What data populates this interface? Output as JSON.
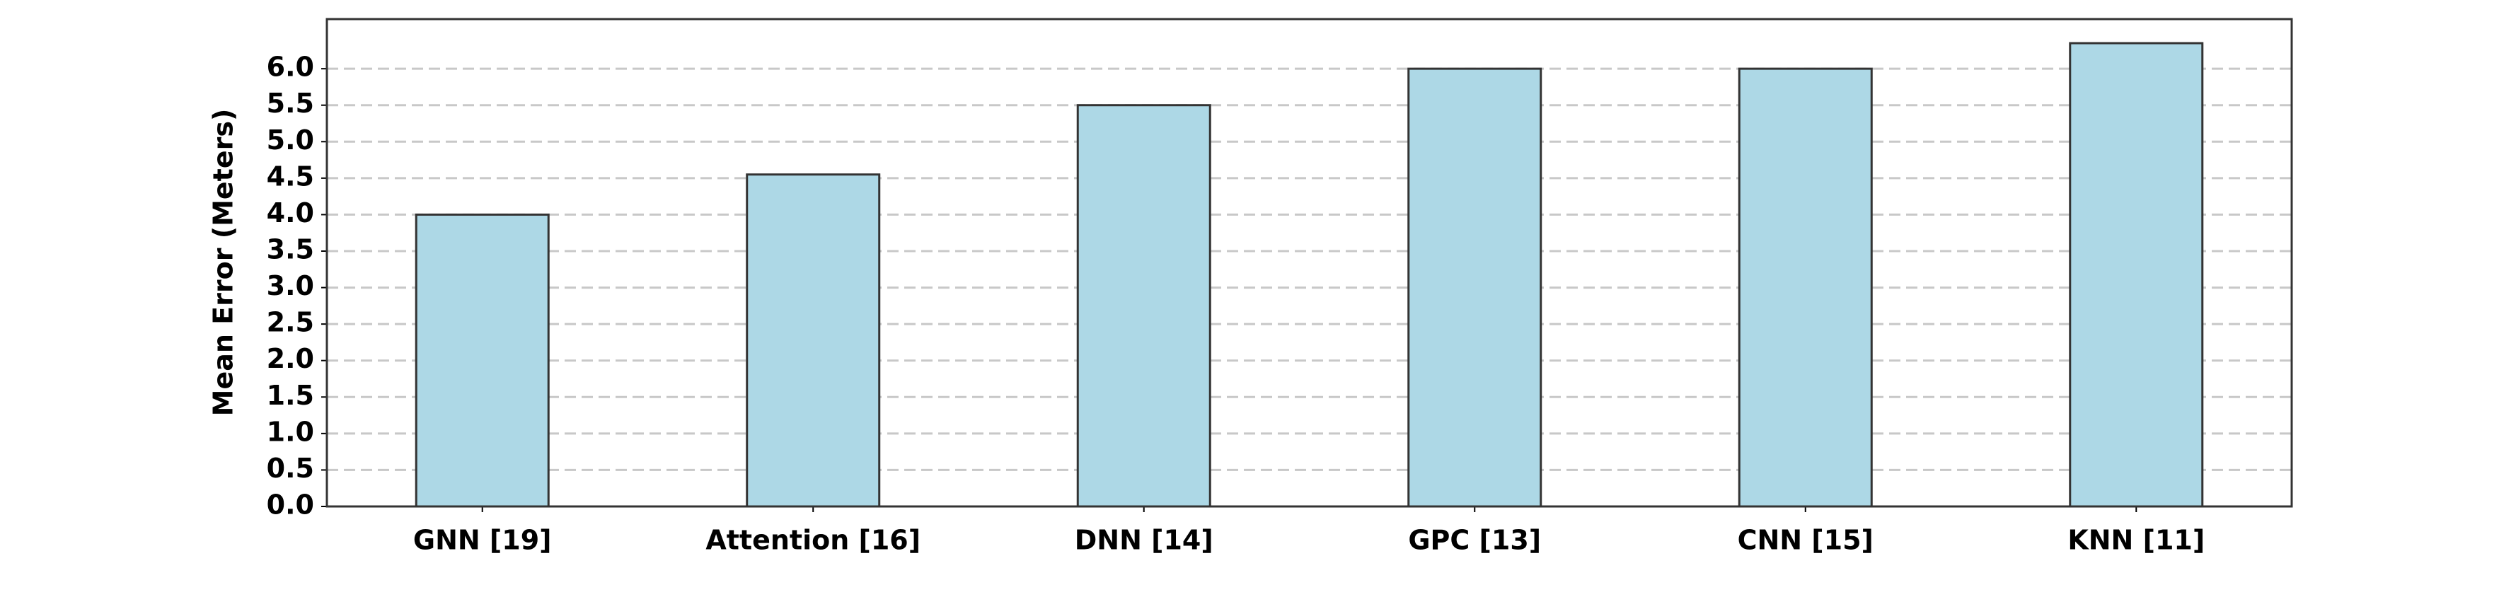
{
  "chart_data": {
    "type": "bar",
    "y_label": "Mean Error (Meters)",
    "categories": [
      "GNN [19]",
      "Attention [16]",
      "DNN [14]",
      "GPC [13]",
      "CNN [15]",
      "KNN [11]"
    ],
    "values": [
      4.0,
      4.55,
      5.5,
      6.0,
      6.0,
      6.35
    ],
    "color": "#add8e6",
    "edge_color": "#333333",
    "ylim": [
      0,
      6.68
    ],
    "yticks": [
      {
        "value": 0,
        "label": "0.0"
      },
      0.5,
      {
        "value": 1,
        "label": "1.0"
      },
      1.5,
      {
        "value": 2,
        "label": "2.0"
      },
      2.5,
      {
        "value": 3,
        "label": "3.0"
      },
      3.5,
      {
        "value": 4,
        "label": "4.0"
      },
      4.5,
      {
        "value": 5,
        "label": "5.0"
      },
      5.5,
      {
        "value": 6,
        "label": "6.0"
      }
    ],
    "grid": true
  }
}
